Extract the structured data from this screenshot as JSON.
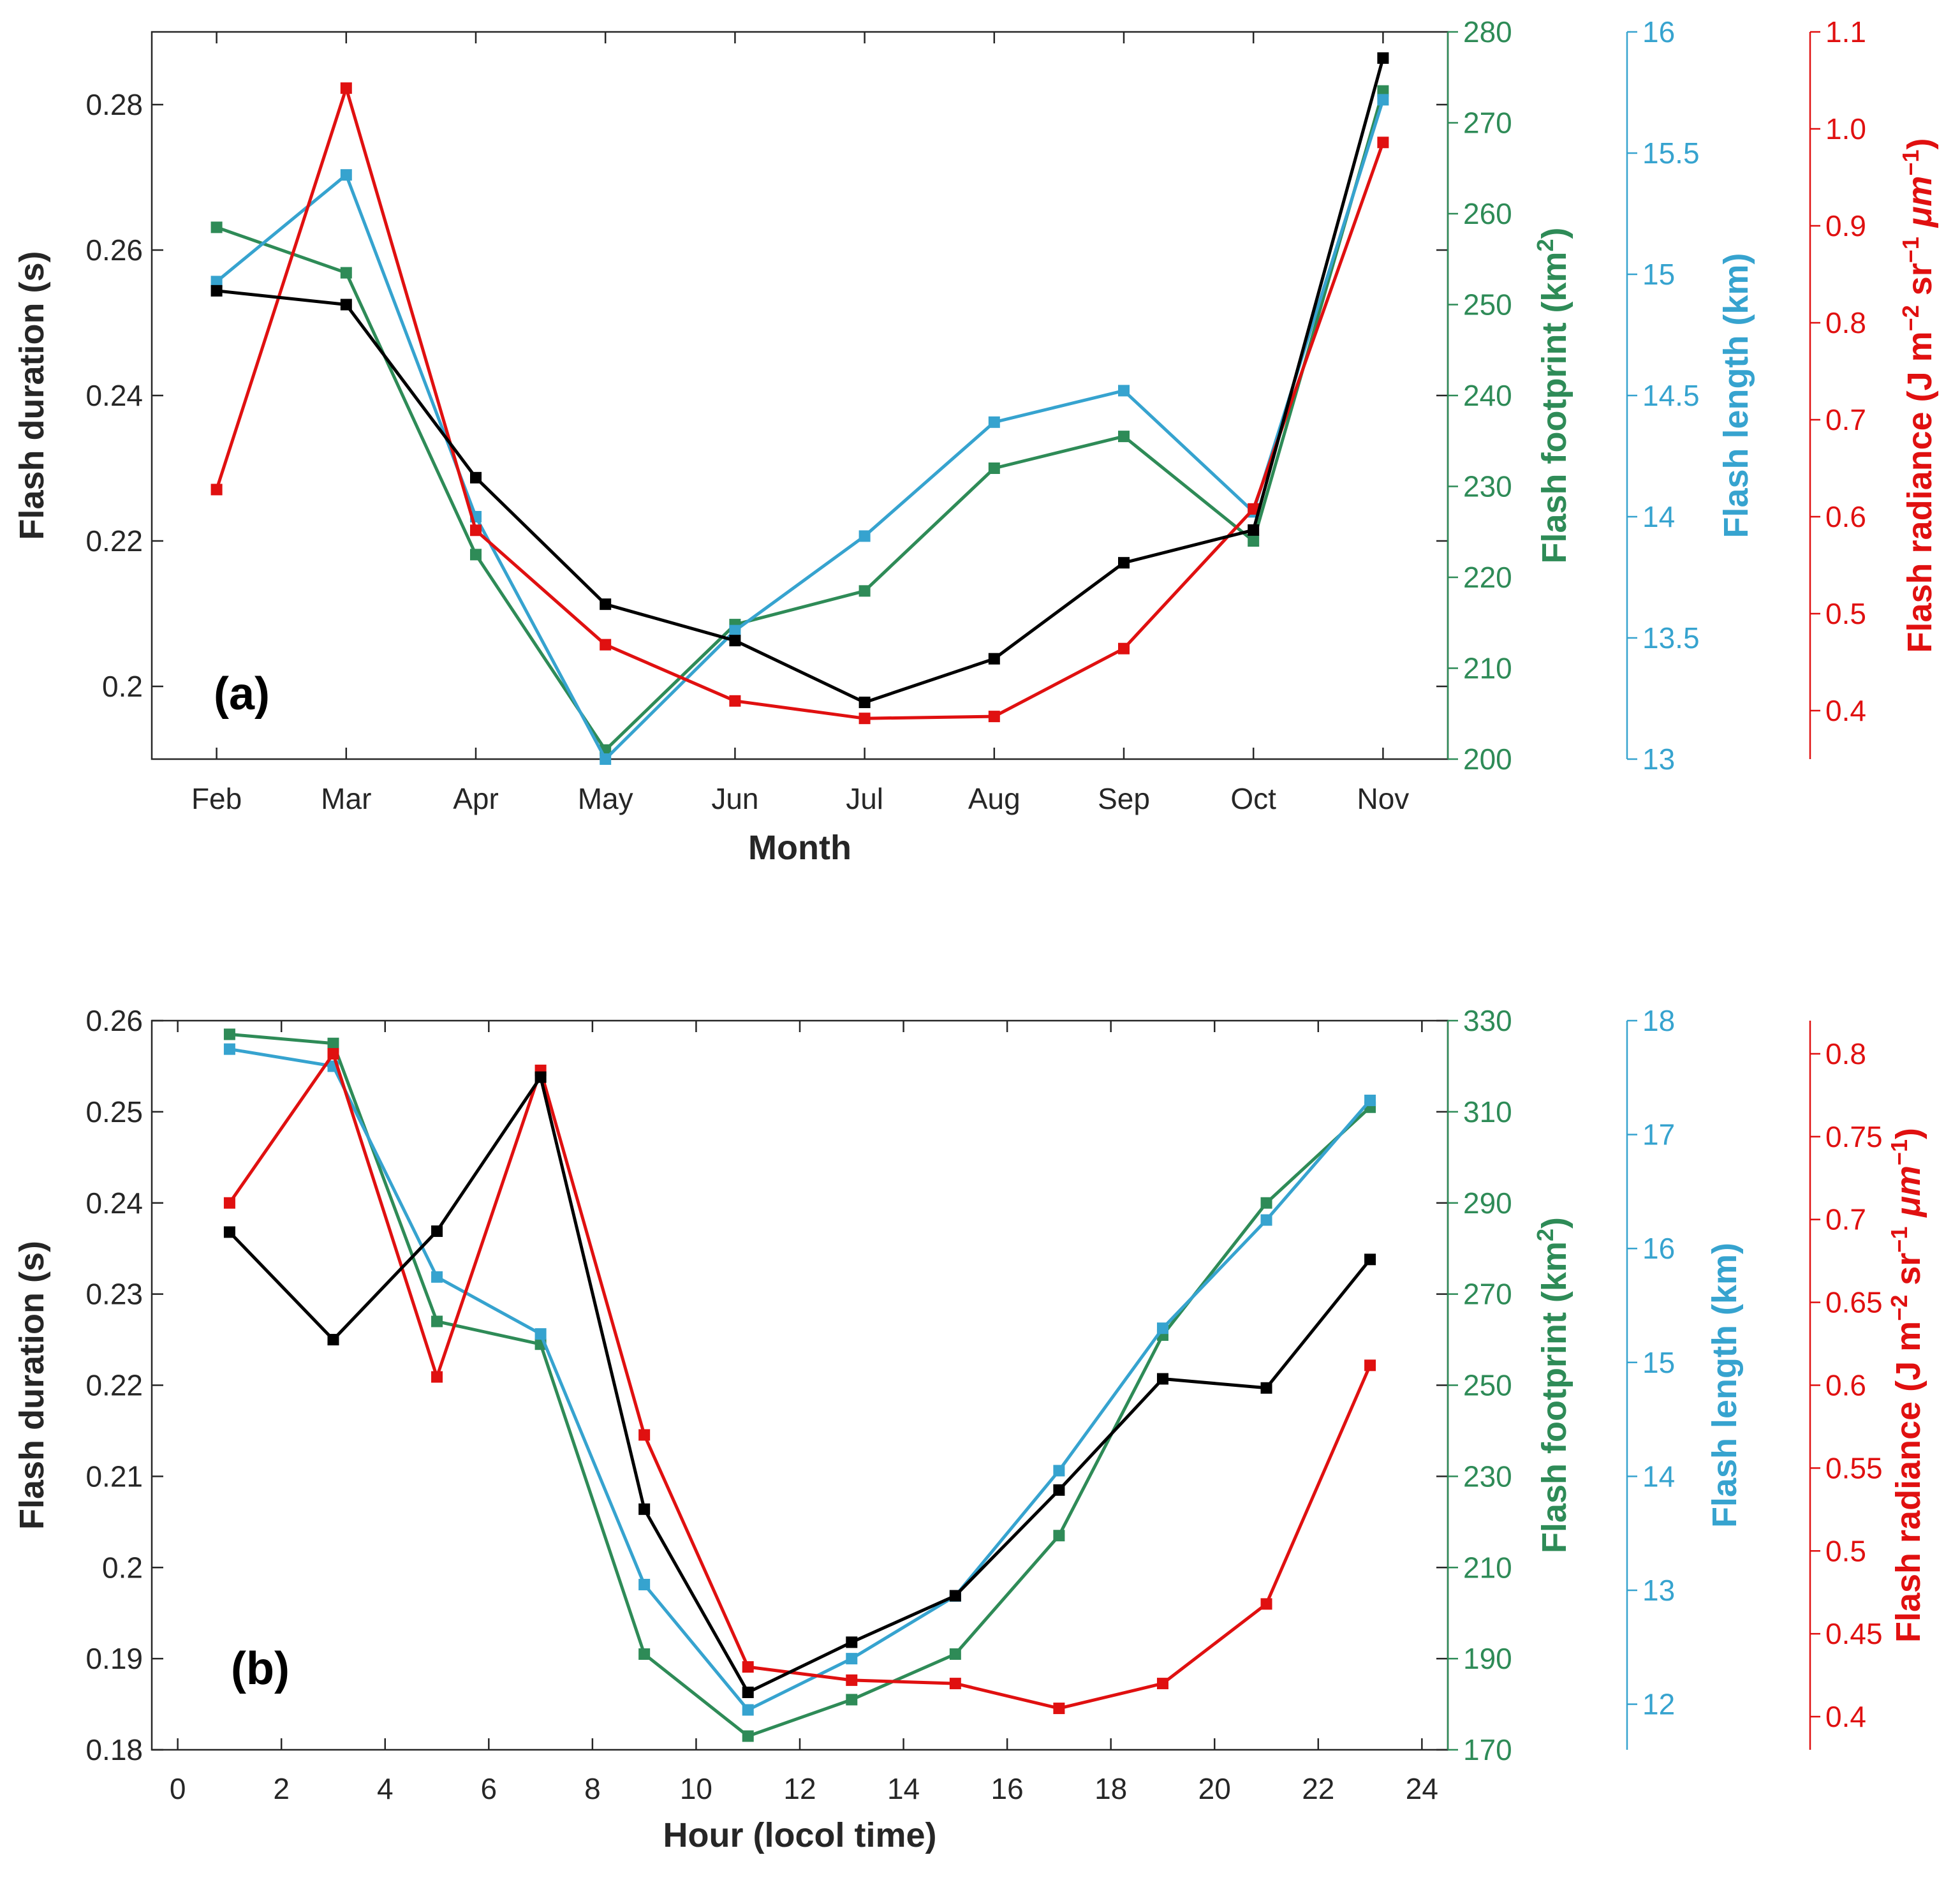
{
  "chart_data": [
    {
      "type": "line",
      "panel_label": "(a)",
      "xlabel": "Month",
      "categories": [
        "Feb",
        "Mar",
        "Apr",
        "May",
        "Jun",
        "Jul",
        "Aug",
        "Sep",
        "Oct",
        "Nov"
      ],
      "axes": [
        {
          "key": "dur",
          "label": "Flash duration (s)",
          "color": "#000000",
          "range": [
            0.19,
            0.29
          ],
          "ticks": [
            0.2,
            0.22,
            0.24,
            0.26,
            0.28
          ],
          "tick_labels": [
            "0.2",
            "0.22",
            "0.24",
            "0.26",
            "0.28"
          ]
        },
        {
          "key": "fp",
          "label_main": "Flash footprint (km",
          "label_sup": "2",
          "label_end": ")",
          "color": "#2e8b57",
          "range": [
            200,
            280
          ],
          "ticks": [
            200,
            210,
            220,
            230,
            240,
            250,
            260,
            270,
            280
          ],
          "tick_labels": [
            "200",
            "210",
            "220",
            "230",
            "240",
            "250",
            "260",
            "270",
            "280"
          ]
        },
        {
          "key": "len",
          "label": "Flash length (km)",
          "color": "#36a3cf",
          "range": [
            13,
            16
          ],
          "ticks": [
            13,
            13.5,
            14,
            14.5,
            15,
            15.5,
            16
          ],
          "tick_labels": [
            "13",
            "13.5",
            "14",
            "14.5",
            "15",
            "15.5",
            "16"
          ]
        },
        {
          "key": "rad",
          "label_main": "Flash radiance (J m",
          "label_sup1": "−2",
          "label_mid": " sr",
          "label_sup2": "−1",
          "label_mu": " μm",
          "label_sup3": "−1",
          "label_end": ")",
          "color": "#e01010",
          "range": [
            0.35,
            1.1
          ],
          "ticks": [
            0.4,
            0.5,
            0.6,
            0.7,
            0.8,
            0.9,
            1.0,
            1.1
          ],
          "tick_labels": [
            "0.4",
            "0.5",
            "0.6",
            "0.7",
            "0.8",
            "0.9",
            "1.0",
            "1.1"
          ]
        }
      ],
      "series": [
        {
          "name": "Flash footprint",
          "axis": "fp",
          "color": "#2e8b57",
          "values": [
            258.5,
            253.5,
            222.5,
            201.0,
            214.8,
            218.5,
            232.0,
            235.5,
            224.0,
            273.5
          ]
        },
        {
          "name": "Flash length",
          "axis": "len",
          "color": "#36a3cf",
          "values": [
            14.97,
            15.41,
            14.0,
            13.0,
            13.53,
            13.92,
            14.39,
            14.52,
            14.02,
            15.72
          ]
        },
        {
          "name": "Flash radiance",
          "axis": "rad",
          "color": "#e01010",
          "values": [
            0.628,
            1.042,
            0.586,
            0.468,
            0.41,
            0.392,
            0.394,
            0.464,
            0.608,
            0.986
          ]
        },
        {
          "name": "Flash duration",
          "axis": "dur",
          "color": "#000000",
          "values": [
            0.2544,
            0.2525,
            0.2287,
            0.2113,
            0.2063,
            0.1978,
            0.2038,
            0.217,
            0.2215,
            0.2864
          ]
        }
      ]
    },
    {
      "type": "line",
      "panel_label": "(b)",
      "xlabel": "Hour (locol time)",
      "x": [
        1,
        3,
        5,
        7,
        9,
        11,
        13,
        15,
        17,
        19,
        21,
        23
      ],
      "xlim": [
        -0.5,
        24.5
      ],
      "xticks": [
        0,
        2,
        4,
        6,
        8,
        10,
        12,
        14,
        16,
        18,
        20,
        22,
        24
      ],
      "xtick_labels": [
        "0",
        "2",
        "4",
        "6",
        "8",
        "10",
        "12",
        "14",
        "16",
        "18",
        "20",
        "22",
        "24"
      ],
      "axes": [
        {
          "key": "dur",
          "label": "Flash duration (s)",
          "color": "#000000",
          "range": [
            0.18,
            0.26
          ],
          "ticks": [
            0.18,
            0.19,
            0.2,
            0.21,
            0.22,
            0.23,
            0.24,
            0.25,
            0.26
          ],
          "tick_labels": [
            "0.18",
            "0.19",
            "0.2",
            "0.21",
            "0.22",
            "0.23",
            "0.24",
            "0.25",
            "0.26"
          ]
        },
        {
          "key": "fp",
          "label_main": "Flash footprint (km",
          "label_sup": "2",
          "label_end": ")",
          "color": "#2e8b57",
          "range": [
            170,
            330
          ],
          "ticks": [
            170,
            190,
            210,
            230,
            250,
            270,
            290,
            310,
            330
          ],
          "tick_labels": [
            "170",
            "190",
            "210",
            "230",
            "250",
            "270",
            "290",
            "310",
            "330"
          ]
        },
        {
          "key": "len",
          "label": "Flash length (km)",
          "color": "#36a3cf",
          "range": [
            11.6,
            18
          ],
          "ticks": [
            12,
            13,
            14,
            15,
            16,
            17,
            18
          ],
          "tick_labels": [
            "12",
            "13",
            "14",
            "15",
            "16",
            "17",
            "18"
          ]
        },
        {
          "key": "rad",
          "label_main": "Flash radiance (J m",
          "label_sup1": "−2",
          "label_mid": " sr",
          "label_sup2": "−1",
          "label_mu": " μm",
          "label_sup3": "−1",
          "label_end": ")",
          "color": "#e01010",
          "range": [
            0.38,
            0.82
          ],
          "ticks": [
            0.4,
            0.45,
            0.5,
            0.55,
            0.6,
            0.65,
            0.7,
            0.75,
            0.8
          ],
          "tick_labels": [
            "0.4",
            "0.45",
            "0.5",
            "0.55",
            "0.6",
            "0.65",
            "0.7",
            "0.75",
            "0.8"
          ]
        }
      ],
      "series": [
        {
          "name": "Flash footprint",
          "axis": "fp",
          "color": "#2e8b57",
          "values": [
            327,
            325,
            264,
            259,
            191,
            173,
            181,
            191,
            217,
            261,
            290,
            311
          ]
        },
        {
          "name": "Flash length",
          "axis": "len",
          "color": "#36a3cf",
          "values": [
            17.75,
            17.6,
            15.75,
            15.25,
            13.05,
            11.95,
            12.4,
            12.95,
            14.05,
            15.3,
            16.25,
            17.3
          ]
        },
        {
          "name": "Flash radiance",
          "axis": "rad",
          "color": "#e01010",
          "values": [
            0.71,
            0.8,
            0.605,
            0.79,
            0.57,
            0.43,
            0.422,
            0.42,
            0.405,
            0.42,
            0.468,
            0.612
          ]
        },
        {
          "name": "Flash duration",
          "axis": "dur",
          "color": "#000000",
          "values": [
            0.2368,
            0.225,
            0.2369,
            0.2538,
            0.2064,
            0.1863,
            0.1918,
            0.1969,
            0.2085,
            0.2207,
            0.2197,
            0.2338
          ]
        }
      ]
    }
  ]
}
